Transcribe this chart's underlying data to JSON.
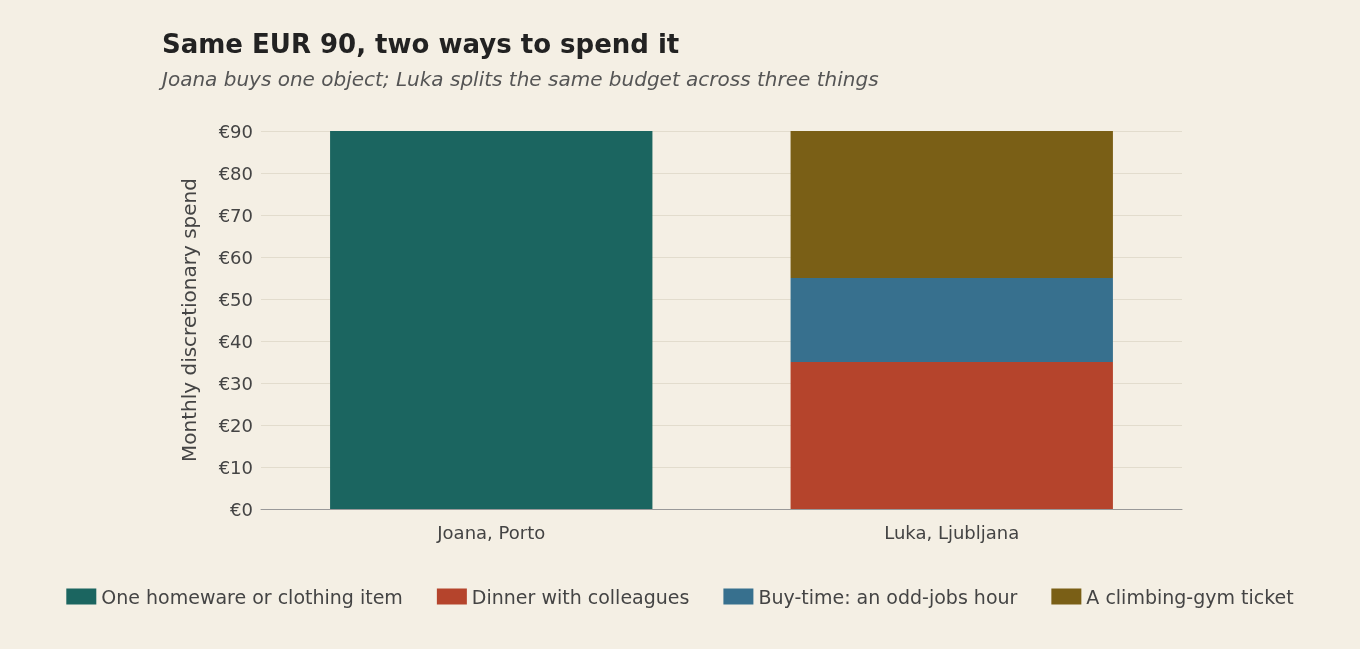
{
  "chart_data": {
    "type": "bar",
    "title": "Same EUR 90, two ways to spend it",
    "subtitle": "Joana buys one object; Luka splits the same budget across three things",
    "ylabel": "Monthly discretionary spend",
    "categories": [
      "Joana, Porto",
      "Luka, Ljubljana"
    ],
    "stacked": true,
    "series": [
      {
        "name": "One homeware or clothing item",
        "color": "#1b6560",
        "values": [
          90,
          null
        ]
      },
      {
        "name": "Dinner with colleagues",
        "color": "#b5442c",
        "values": [
          null,
          35
        ]
      },
      {
        "name": "Buy-time: an odd-jobs hour",
        "color": "#37708e",
        "values": [
          null,
          20
        ]
      },
      {
        "name": "A climbing-gym ticket",
        "color": "#7a5f16",
        "values": [
          null,
          35
        ]
      }
    ],
    "ylim": [
      0,
      90
    ],
    "yticks": [
      {
        "value": 0,
        "label": "€0"
      },
      {
        "value": 10,
        "label": "€10"
      },
      {
        "value": 20,
        "label": "€20"
      },
      {
        "value": 30,
        "label": "€30"
      },
      {
        "value": 40,
        "label": "€40"
      },
      {
        "value": 50,
        "label": "€50"
      },
      {
        "value": 60,
        "label": "€60"
      },
      {
        "value": 70,
        "label": "€70"
      },
      {
        "value": 80,
        "label": "€80"
      },
      {
        "value": 90,
        "label": "€90"
      }
    ],
    "grid": "y",
    "legend": "bottom"
  }
}
